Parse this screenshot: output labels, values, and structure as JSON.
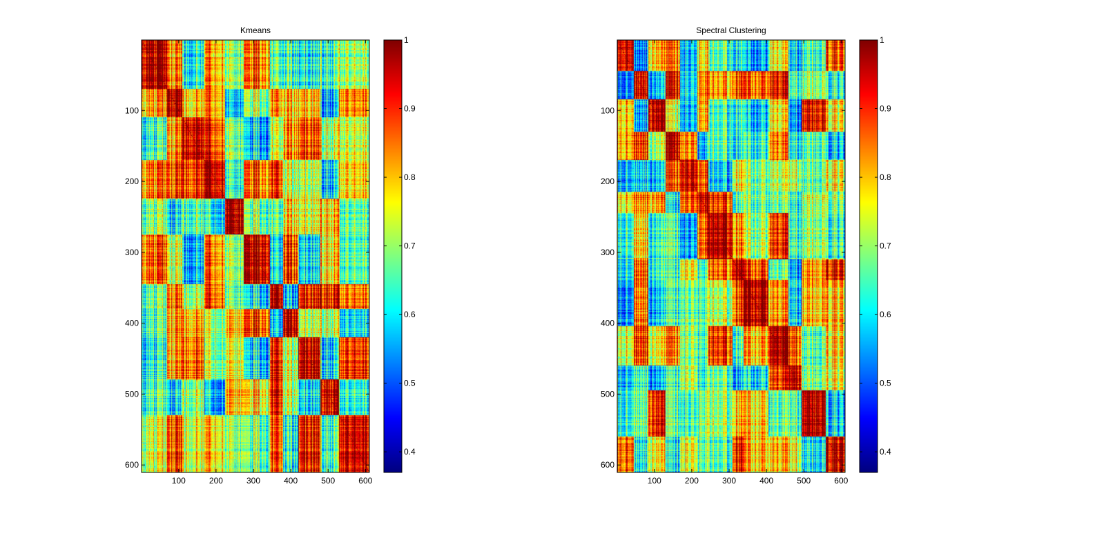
{
  "chart_data": [
    {
      "type": "heatmap",
      "title": "Kmeans",
      "xlabel": "",
      "ylabel": "",
      "x_range": [
        1,
        610
      ],
      "y_range": [
        1,
        610
      ],
      "y_reversed": true,
      "x_ticks": [
        "100",
        "200",
        "300",
        "400",
        "500",
        "600"
      ],
      "y_ticks": [
        "100",
        "200",
        "300",
        "400",
        "500",
        "600"
      ],
      "clusters": [
        1,
        70,
        110,
        170,
        225,
        275,
        345,
        380,
        420,
        480,
        530,
        610
      ],
      "colormap": "jet",
      "color_range": [
        0.37,
        1
      ],
      "colorbar_ticks": [
        "0.4",
        "0.5",
        "0.6",
        "0.7",
        "0.8",
        "0.9",
        "1"
      ]
    },
    {
      "type": "heatmap",
      "title": "Spectral Clustering",
      "xlabel": "",
      "ylabel": "",
      "x_range": [
        1,
        610
      ],
      "y_range": [
        1,
        610
      ],
      "y_reversed": true,
      "x_ticks": [
        "100",
        "200",
        "300",
        "400",
        "500",
        "600"
      ],
      "y_ticks": [
        "100",
        "200",
        "300",
        "400",
        "500",
        "600"
      ],
      "clusters": [
        1,
        45,
        85,
        130,
        170,
        215,
        245,
        310,
        340,
        405,
        460,
        495,
        560,
        610
      ],
      "colormap": "jet",
      "color_range": [
        0.37,
        1
      ],
      "colorbar_ticks": [
        "0.4",
        "0.5",
        "0.6",
        "0.7",
        "0.8",
        "0.9",
        "1"
      ]
    }
  ]
}
